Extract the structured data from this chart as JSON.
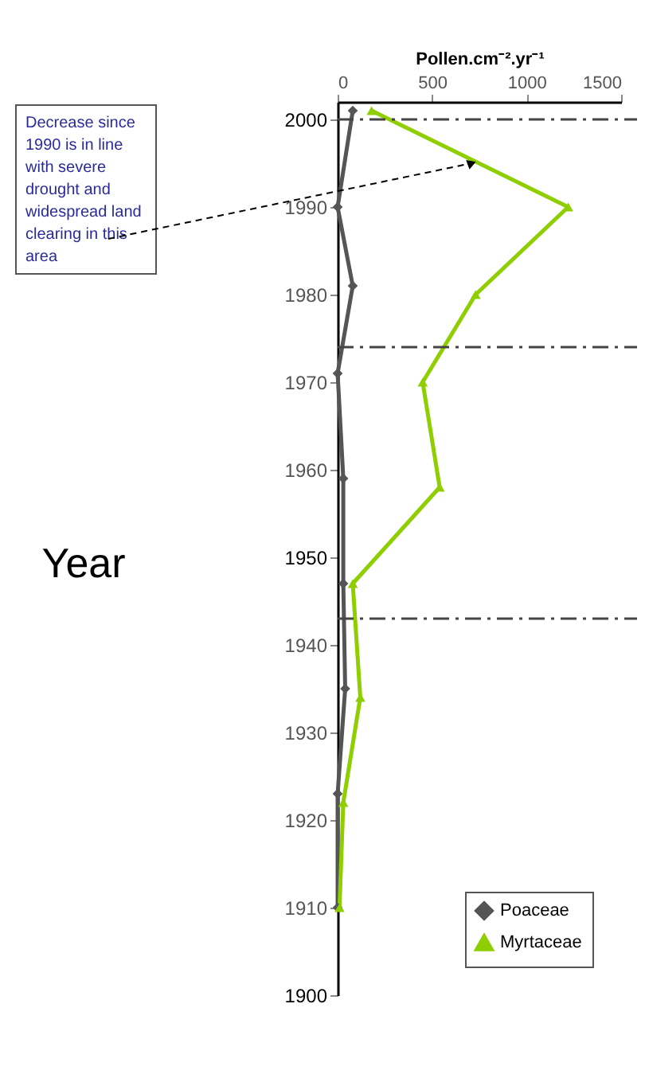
{
  "chart_data": {
    "type": "line",
    "xlabel": "Pollen.cm⁻².yr⁻¹",
    "ylabel": "Year",
    "xlim": [
      0,
      1500
    ],
    "xticks": [
      0,
      500,
      1000,
      1500
    ],
    "ylim": [
      1900,
      2002
    ],
    "yticks": [
      1900,
      1910,
      1920,
      1930,
      1940,
      1950,
      1960,
      1970,
      1980,
      1990,
      2000
    ],
    "series": [
      {
        "name": "Poaceae",
        "color": "#555555",
        "marker": "diamond",
        "values": [
          2001,
          1990,
          1981,
          1971,
          1959,
          1947,
          1935,
          1923,
          1910
        ],
        "x": [
          80,
          0,
          80,
          0,
          30,
          30,
          40,
          0,
          0
        ]
      },
      {
        "name": "Myrtaceae",
        "color": "#8fce00",
        "marker": "triangle",
        "values": [
          2001,
          1990,
          1980,
          1970,
          1958,
          1947,
          1934,
          1922,
          1910
        ],
        "x": [
          180,
          1220,
          730,
          450,
          540,
          80,
          120,
          30,
          10
        ]
      }
    ],
    "ref_lines": [
      {
        "axis": "y",
        "value": 2000,
        "line_style": "dashed",
        "color": "#444444"
      },
      {
        "axis": "y",
        "value": 1974,
        "line_style": "dashed",
        "color": "#444444"
      },
      {
        "axis": "y",
        "value": 1943,
        "line_style": "dashed",
        "color": "#444444"
      }
    ],
    "annotations": [
      {
        "text": "Decrease since 1990 is in line with severe drought and widespread land clearing in this area",
        "x": 710,
        "y": 1995
      }
    ],
    "legend": "bottom right",
    "grid": false,
    "line_style": "solid"
  }
}
